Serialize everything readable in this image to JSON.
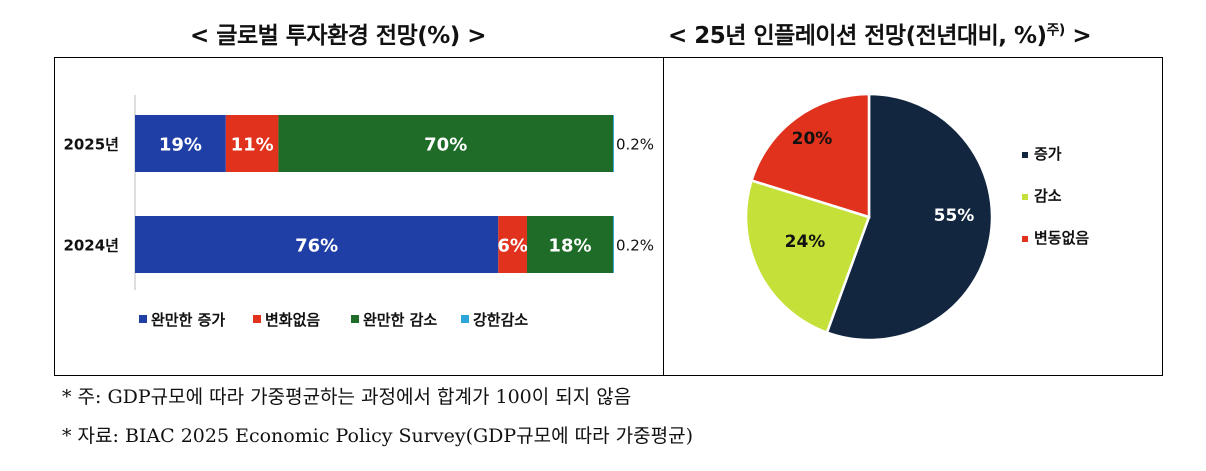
{
  "left_title": "< 글로벌 투자환경 전망(%) >",
  "right_title_main": "< 25년 인플레이션 전망(전년대비, %)",
  "right_title_sup": "주)",
  "right_title_end": " >",
  "notes": [
    "* 주: GDP규모에 따라 가중평균하는 과정에서 합계가 100이 되지 않음",
    "* 자료: BIAC 2025 Economic Policy Survey(GDP규모에 따라 가중평균)"
  ],
  "chart_data": [
    {
      "type": "bar",
      "orientation": "horizontal",
      "stacked": true,
      "title": "글로벌 투자환경 전망(%)",
      "categories": [
        "2025년",
        "2024년"
      ],
      "series": [
        {
          "name": "완만한 증가",
          "values": [
            19,
            76
          ],
          "labels": [
            "19%",
            "76%"
          ],
          "color": "#1f3fa6"
        },
        {
          "name": "변화없음",
          "values": [
            11,
            6
          ],
          "labels": [
            "11%",
            "6%"
          ],
          "color": "#e0321c"
        },
        {
          "name": "완만한 감소",
          "values": [
            70,
            18
          ],
          "labels": [
            "70%",
            "18%"
          ],
          "color": "#1f6b28"
        },
        {
          "name": "강한감소",
          "values": [
            0.2,
            0.2
          ],
          "labels": [
            "0.2%",
            "0.2%"
          ],
          "color": "#2aa6d8"
        }
      ],
      "xlim": [
        0,
        100
      ],
      "legend": "bottom"
    },
    {
      "type": "pie",
      "title": "25년 인플레이션 전망(전년대비, %)",
      "categories": [
        "증가",
        "감소",
        "변동없음"
      ],
      "values": [
        55,
        24,
        20
      ],
      "labels": [
        "55%",
        "24%",
        "20%"
      ],
      "colors": [
        "#12263f",
        "#c6e03a",
        "#e0321c"
      ],
      "legend": "right"
    }
  ]
}
